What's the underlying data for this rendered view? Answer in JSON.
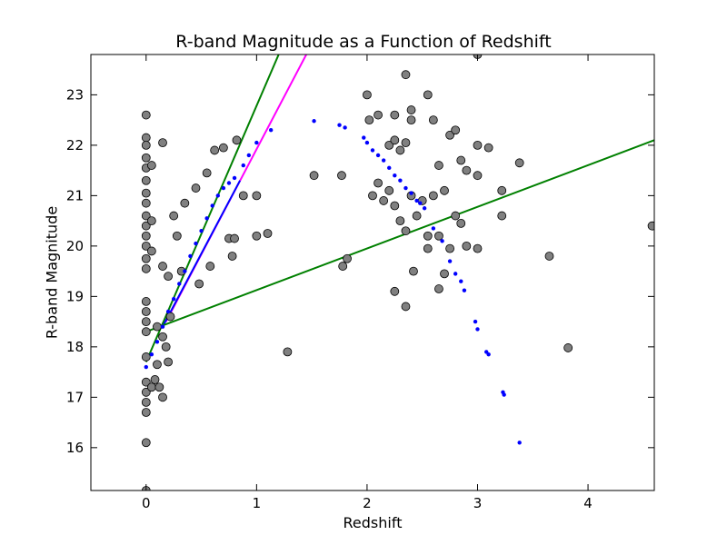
{
  "chart_data": {
    "type": "scatter",
    "title": "R-band Magnitude as a Function of Redshift",
    "xlabel": "Redshift",
    "ylabel": "R-band Magnitude",
    "xlim": [
      -0.5,
      4.6
    ],
    "ylim": [
      15.15,
      23.8
    ],
    "xticks": [
      0,
      1,
      2,
      3,
      4
    ],
    "yticks": [
      16,
      17,
      18,
      19,
      20,
      21,
      22,
      23
    ],
    "grid": false,
    "colors": {
      "grey_points": "#808080",
      "blue_points": "#0000ff",
      "magenta_line": "#ff00ff",
      "green_line": "#008000",
      "blue_line": "#0000ff"
    },
    "series": [
      {
        "marker": "circle",
        "color": "#808080",
        "points": [
          [
            0,
            22.6
          ],
          [
            0,
            22.15
          ],
          [
            0,
            22.0
          ],
          [
            0,
            21.75
          ],
          [
            0,
            21.55
          ],
          [
            0,
            21.3
          ],
          [
            0,
            21.05
          ],
          [
            0,
            20.85
          ],
          [
            0,
            20.6
          ],
          [
            0,
            20.4
          ],
          [
            0,
            20.2
          ],
          [
            0,
            20.0
          ],
          [
            0,
            19.75
          ],
          [
            0,
            19.55
          ],
          [
            0,
            18.9
          ],
          [
            0,
            18.7
          ],
          [
            0,
            18.5
          ],
          [
            0,
            18.3
          ],
          [
            0,
            17.8
          ],
          [
            0,
            17.3
          ],
          [
            0,
            17.1
          ],
          [
            0,
            16.9
          ],
          [
            0,
            16.7
          ],
          [
            0,
            16.1
          ],
          [
            0,
            15.15
          ],
          [
            0.05,
            21.6
          ],
          [
            0.05,
            20.5
          ],
          [
            0.05,
            19.9
          ],
          [
            0.05,
            17.2
          ],
          [
            0.08,
            17.35
          ],
          [
            0.1,
            18.4
          ],
          [
            0.1,
            17.65
          ],
          [
            0.12,
            17.2
          ],
          [
            0.15,
            22.05
          ],
          [
            0.15,
            19.6
          ],
          [
            0.15,
            18.2
          ],
          [
            0.18,
            18.0
          ],
          [
            0.2,
            19.4
          ],
          [
            0.22,
            18.6
          ],
          [
            0.25,
            20.6
          ],
          [
            0.28,
            20.2
          ],
          [
            0.2,
            17.7
          ],
          [
            0.15,
            17.0
          ],
          [
            1.0,
            21.0
          ],
          [
            1.1,
            20.25
          ],
          [
            1.0,
            20.2
          ],
          [
            1.28,
            17.9
          ],
          [
            1.52,
            21.4
          ],
          [
            1.77,
            21.4
          ],
          [
            1.78,
            19.6
          ],
          [
            1.82,
            19.75
          ],
          [
            2.0,
            23.0
          ],
          [
            2.02,
            22.5
          ],
          [
            2.1,
            22.6
          ],
          [
            2.25,
            22.6
          ],
          [
            2.35,
            23.4
          ],
          [
            2.4,
            22.7
          ],
          [
            2.4,
            22.5
          ],
          [
            2.55,
            23.0
          ],
          [
            2.6,
            22.5
          ],
          [
            2.2,
            22.0
          ],
          [
            2.25,
            22.1
          ],
          [
            2.3,
            21.9
          ],
          [
            2.35,
            22.05
          ],
          [
            2.1,
            21.25
          ],
          [
            2.05,
            21.0
          ],
          [
            2.15,
            20.9
          ],
          [
            2.2,
            21.1
          ],
          [
            2.25,
            20.8
          ],
          [
            2.3,
            20.5
          ],
          [
            2.35,
            20.3
          ],
          [
            2.4,
            21.0
          ],
          [
            2.45,
            20.6
          ],
          [
            2.5,
            20.9
          ],
          [
            2.55,
            20.2
          ],
          [
            2.6,
            21.0
          ],
          [
            2.65,
            21.6
          ],
          [
            2.7,
            21.1
          ],
          [
            2.75,
            22.2
          ],
          [
            2.8,
            22.3
          ],
          [
            2.85,
            21.7
          ],
          [
            2.9,
            21.5
          ],
          [
            3.0,
            22.0
          ],
          [
            3.1,
            21.95
          ],
          [
            3.0,
            21.4
          ],
          [
            2.55,
            19.95
          ],
          [
            2.65,
            20.2
          ],
          [
            2.7,
            19.45
          ],
          [
            2.75,
            19.95
          ],
          [
            2.8,
            20.6
          ],
          [
            2.85,
            20.45
          ],
          [
            2.9,
            20.0
          ],
          [
            3.0,
            19.95
          ],
          [
            2.25,
            19.1
          ],
          [
            2.35,
            18.8
          ],
          [
            2.42,
            19.5
          ],
          [
            2.65,
            19.15
          ],
          [
            3.22,
            21.1
          ],
          [
            3.22,
            20.6
          ],
          [
            3.38,
            21.65
          ],
          [
            3.65,
            19.8
          ],
          [
            3.82,
            17.98
          ],
          [
            4.58,
            20.4
          ],
          [
            3.0,
            23.8
          ],
          [
            0.45,
            21.15
          ],
          [
            0.55,
            21.45
          ],
          [
            0.62,
            21.9
          ],
          [
            0.7,
            21.95
          ],
          [
            0.82,
            22.1
          ],
          [
            0.88,
            21.0
          ],
          [
            0.75,
            20.15
          ],
          [
            0.8,
            20.15
          ],
          [
            0.78,
            19.8
          ],
          [
            0.58,
            19.6
          ],
          [
            0.48,
            19.25
          ],
          [
            0.32,
            19.5
          ],
          [
            0.35,
            20.85
          ]
        ]
      },
      {
        "marker": "dot",
        "color": "#0000ff",
        "points": [
          [
            0.0,
            17.6
          ],
          [
            0.05,
            17.85
          ],
          [
            0.1,
            18.1
          ],
          [
            0.15,
            18.4
          ],
          [
            0.2,
            18.7
          ],
          [
            0.25,
            18.95
          ],
          [
            0.3,
            19.25
          ],
          [
            0.35,
            19.5
          ],
          [
            0.4,
            19.8
          ],
          [
            0.45,
            20.05
          ],
          [
            0.5,
            20.3
          ],
          [
            0.55,
            20.55
          ],
          [
            0.6,
            20.8
          ],
          [
            0.65,
            21.0
          ],
          [
            0.7,
            21.15
          ],
          [
            0.75,
            21.25
          ],
          [
            0.8,
            21.35
          ],
          [
            0.88,
            21.6
          ],
          [
            0.93,
            21.8
          ],
          [
            1.0,
            22.05
          ],
          [
            1.13,
            22.3
          ],
          [
            1.52,
            22.48
          ],
          [
            1.75,
            22.4
          ],
          [
            1.8,
            22.35
          ],
          [
            1.97,
            22.15
          ],
          [
            2.0,
            22.05
          ],
          [
            2.05,
            21.9
          ],
          [
            2.1,
            21.8
          ],
          [
            2.15,
            21.7
          ],
          [
            2.2,
            21.55
          ],
          [
            2.25,
            21.4
          ],
          [
            2.3,
            21.3
          ],
          [
            2.35,
            21.15
          ],
          [
            2.4,
            21.05
          ],
          [
            2.45,
            20.9
          ],
          [
            2.48,
            20.85
          ],
          [
            2.52,
            20.75
          ],
          [
            2.6,
            20.35
          ],
          [
            2.68,
            20.1
          ],
          [
            2.75,
            19.7
          ],
          [
            2.8,
            19.45
          ],
          [
            2.85,
            19.3
          ],
          [
            2.88,
            19.12
          ],
          [
            2.98,
            18.5
          ],
          [
            3.0,
            18.35
          ],
          [
            3.08,
            17.9
          ],
          [
            3.1,
            17.85
          ],
          [
            3.23,
            17.1
          ],
          [
            3.24,
            17.05
          ],
          [
            3.38,
            16.1
          ]
        ]
      },
      {
        "type": "line",
        "color": "#ff00ff",
        "points": [
          [
            0.18,
            18.5
          ],
          [
            1.45,
            23.8
          ]
        ]
      },
      {
        "type": "line",
        "color": "#008000",
        "points": [
          [
            0.0,
            17.7
          ],
          [
            1.2,
            23.8
          ]
        ]
      },
      {
        "type": "line",
        "color": "#0000ff",
        "points": [
          [
            0.15,
            18.4
          ],
          [
            0.85,
            21.3
          ]
        ]
      },
      {
        "type": "line",
        "color": "#008000",
        "points": [
          [
            0.0,
            18.3
          ],
          [
            4.6,
            22.1
          ]
        ]
      }
    ]
  }
}
